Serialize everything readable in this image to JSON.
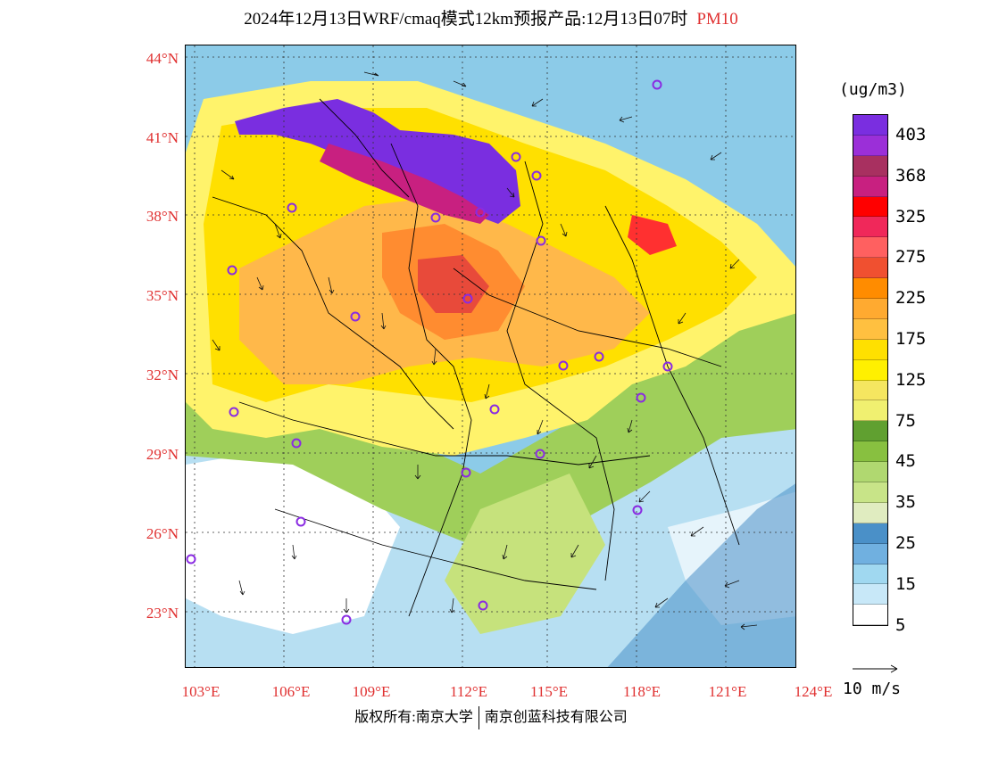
{
  "title": {
    "main": "2024年12月13日WRF/cmaq模式12km预报产品:12月13日07时",
    "pollutant": "PM10"
  },
  "axes": {
    "lat_labels": [
      "44°N",
      "41°N",
      "38°N",
      "35°N",
      "32°N",
      "29°N",
      "26°N",
      "23°N"
    ],
    "lon_labels": [
      "103°E",
      "106°E",
      "109°E",
      "112°E",
      "115°E",
      "118°E",
      "121°E",
      "124°E"
    ]
  },
  "legend": {
    "unit": "(ug/m3)",
    "colors": [
      "#7a2ee0",
      "#9b2fd8",
      "#a83060",
      "#c82080",
      "#ff0000",
      "#f0285a",
      "#ff6060",
      "#f05030",
      "#ff8c00",
      "#ffaa30",
      "#ffc040",
      "#ffe000",
      "#fff000",
      "#f5e660",
      "#f0f070",
      "#60a030",
      "#88c040",
      "#b0d870",
      "#c8e488",
      "#e0ecc0",
      "#4a90c8",
      "#70b0e0",
      "#a0d8f0",
      "#c8e8f8",
      "#ffffff"
    ],
    "labels": [
      "403",
      "368",
      "325",
      "275",
      "225",
      "175",
      "125",
      "75",
      "45",
      "35",
      "25",
      "15",
      "5"
    ]
  },
  "vector_ref": {
    "label": "10 m/s"
  },
  "footer": {
    "left": "版权所有:南京大学",
    "right": "南京创蓝科技有限公司"
  }
}
